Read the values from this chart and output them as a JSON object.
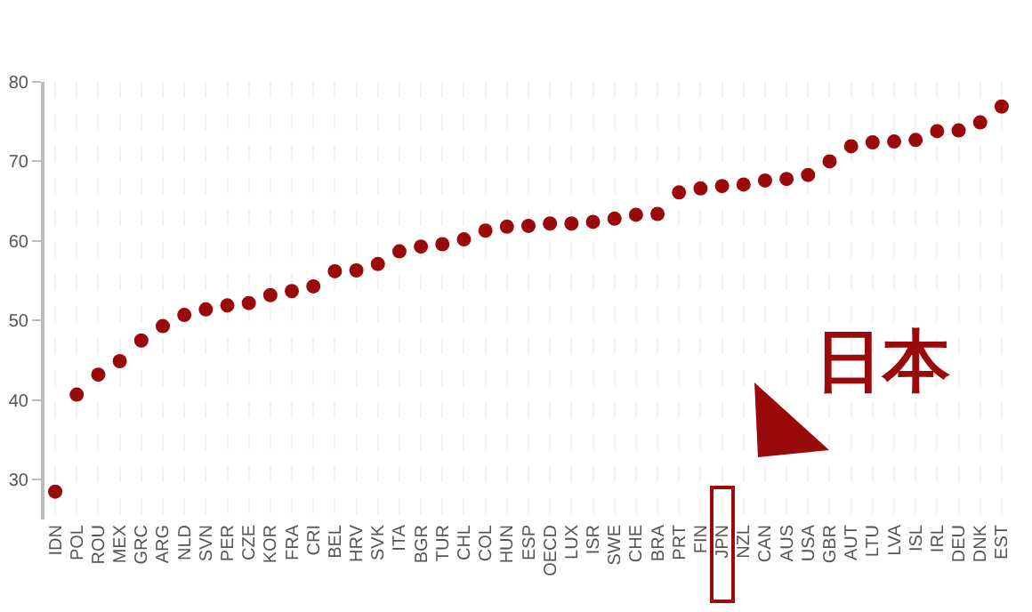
{
  "chart_data": {
    "type": "scatter",
    "categories": [
      "IDN",
      "POL",
      "ROU",
      "MEX",
      "GRC",
      "ARG",
      "NLD",
      "SVN",
      "PER",
      "CZE",
      "KOR",
      "FRA",
      "CRI",
      "BEL",
      "HRV",
      "SVK",
      "ITA",
      "BGR",
      "TUR",
      "CHL",
      "COL",
      "HUN",
      "ESP",
      "OECD",
      "LUX",
      "ISR",
      "SWE",
      "CHE",
      "BRA",
      "PRT",
      "FIN",
      "JPN",
      "NZL",
      "CAN",
      "AUS",
      "USA",
      "GBR",
      "AUT",
      "LTU",
      "LVA",
      "ISL",
      "IRL",
      "DEU",
      "DNK",
      "EST"
    ],
    "values": [
      28.5,
      40.7,
      43.2,
      44.9,
      47.5,
      49.3,
      50.7,
      51.4,
      51.9,
      52.2,
      53.2,
      53.7,
      54.3,
      56.2,
      56.3,
      57.1,
      58.7,
      59.3,
      59.6,
      60.2,
      61.3,
      61.8,
      61.9,
      62.2,
      62.2,
      62.4,
      62.8,
      63.3,
      63.4,
      66.1,
      66.6,
      66.9,
      67.1,
      67.6,
      67.8,
      68.3,
      70.0,
      71.9,
      72.4,
      72.5,
      72.7,
      73.8,
      73.9,
      74.9,
      76.9
    ],
    "color": "#9b0a0a",
    "marker": "circle",
    "ylim": [
      25,
      80
    ],
    "yticks": [
      30,
      40,
      50,
      60,
      70,
      80
    ],
    "grid": "x",
    "legend": false,
    "annotations": [
      "日本"
    ]
  }
}
